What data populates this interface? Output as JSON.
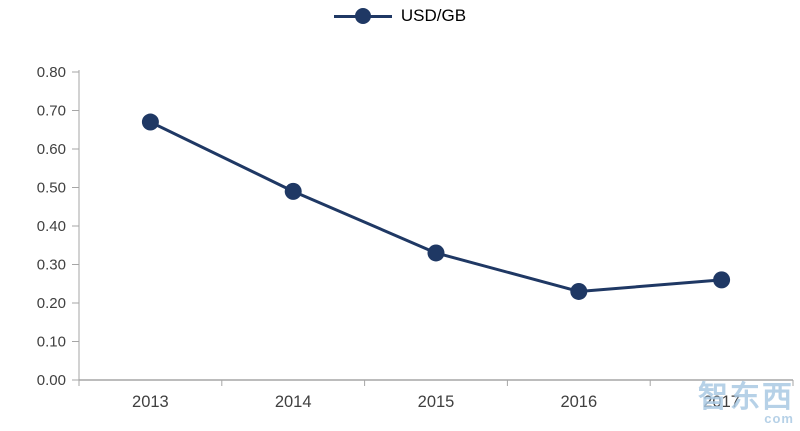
{
  "chart_data": {
    "type": "line",
    "x": [
      "2013",
      "2014",
      "2015",
      "2016",
      "2017"
    ],
    "series": [
      {
        "name": "USD/GB",
        "values": [
          0.67,
          0.49,
          0.33,
          0.23,
          0.26
        ]
      }
    ],
    "title": "",
    "xlabel": "",
    "ylabel": "",
    "ylim": [
      0.0,
      0.8
    ],
    "ytick_step": 0.1,
    "ytick_labels": [
      "0.00",
      "0.10",
      "0.20",
      "0.30",
      "0.40",
      "0.50",
      "0.60",
      "0.70",
      "0.80"
    ],
    "grid": "off",
    "legend_position": "top-center",
    "marker": "filled-circle",
    "colors": {
      "line": "#1f3864",
      "axis": "#a6a6a6",
      "tick_text": "#404040",
      "watermark": "#aac9e3"
    }
  },
  "legend": {
    "label": "USD/GB"
  },
  "watermark": {
    "text": "智东西",
    "sub": "com"
  }
}
